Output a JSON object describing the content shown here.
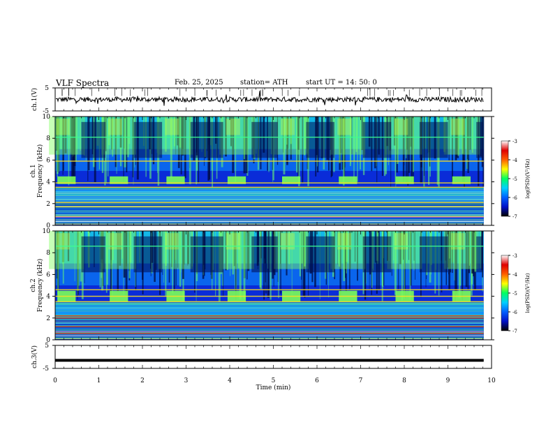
{
  "header": {
    "title": "VLF Spectra",
    "date": "Feb. 25, 2025",
    "station": "station= ATH",
    "start": "start  UT  =   14: 50: 0"
  },
  "chart_data": {
    "type": "heatmap",
    "x_axis": {
      "label": "Time  (min)",
      "range": [
        0,
        10
      ],
      "ticks": [
        "0",
        "1",
        "2",
        "3",
        "4",
        "5",
        "6",
        "7",
        "8",
        "9",
        "10"
      ]
    },
    "waveform_panels": [
      {
        "id": "ch1",
        "ylabel": "ch.1(V)",
        "range": [
          -5,
          5
        ],
        "tick_labels": [
          "5",
          "-5"
        ],
        "level": 0
      },
      {
        "id": "ch3",
        "ylabel": "ch.3(V)",
        "range": [
          -5,
          5
        ],
        "tick_labels": [
          "5",
          "-5"
        ],
        "level": -1.5
      }
    ],
    "spectrogram_panels": [
      {
        "id": "ch1",
        "ylabel": "ch.1",
        "ylabel2": "Frequency  (kHz)",
        "ylim": [
          0,
          10
        ],
        "tick_labels": [
          "0",
          "2",
          "4",
          "6",
          "8",
          "10"
        ],
        "strong_lines_khz": [
          0.8,
          1.7,
          2.1,
          3.5,
          3.9,
          5.9,
          8.1
        ],
        "burst_band_khz": [
          3.8,
          4.5
        ],
        "burst_times_min": [
          0.05,
          1.25,
          2.55,
          3.95,
          5.2,
          6.5,
          7.8,
          9.1
        ]
      },
      {
        "id": "ch2",
        "ylabel": "ch.2",
        "ylabel2": "Frequency  (kHz)",
        "ylim": [
          0,
          10
        ],
        "tick_labels": [
          "0",
          "2",
          "4",
          "6",
          "8",
          "10"
        ],
        "strong_lines_khz": [
          0.6,
          1.2,
          2.0,
          2.2,
          3.5,
          4.0,
          4.6,
          8.6
        ],
        "burst_band_khz": [
          3.5,
          4.5
        ],
        "burst_times_min": [
          0.05,
          1.25,
          2.55,
          3.95,
          5.2,
          6.5,
          7.8,
          9.1
        ]
      }
    ],
    "colorbar": {
      "label": "log(PSD)(V²/Hz)",
      "range": [
        -7,
        -3
      ],
      "tick_labels": [
        "-3",
        "-4",
        "-5",
        "-6",
        "-7"
      ],
      "colors": [
        "#000000",
        "#0010c8",
        "#0060ff",
        "#00d0ff",
        "#00ff60",
        "#ffff00",
        "#ff6000",
        "#e00000",
        "#ffffff"
      ]
    }
  }
}
